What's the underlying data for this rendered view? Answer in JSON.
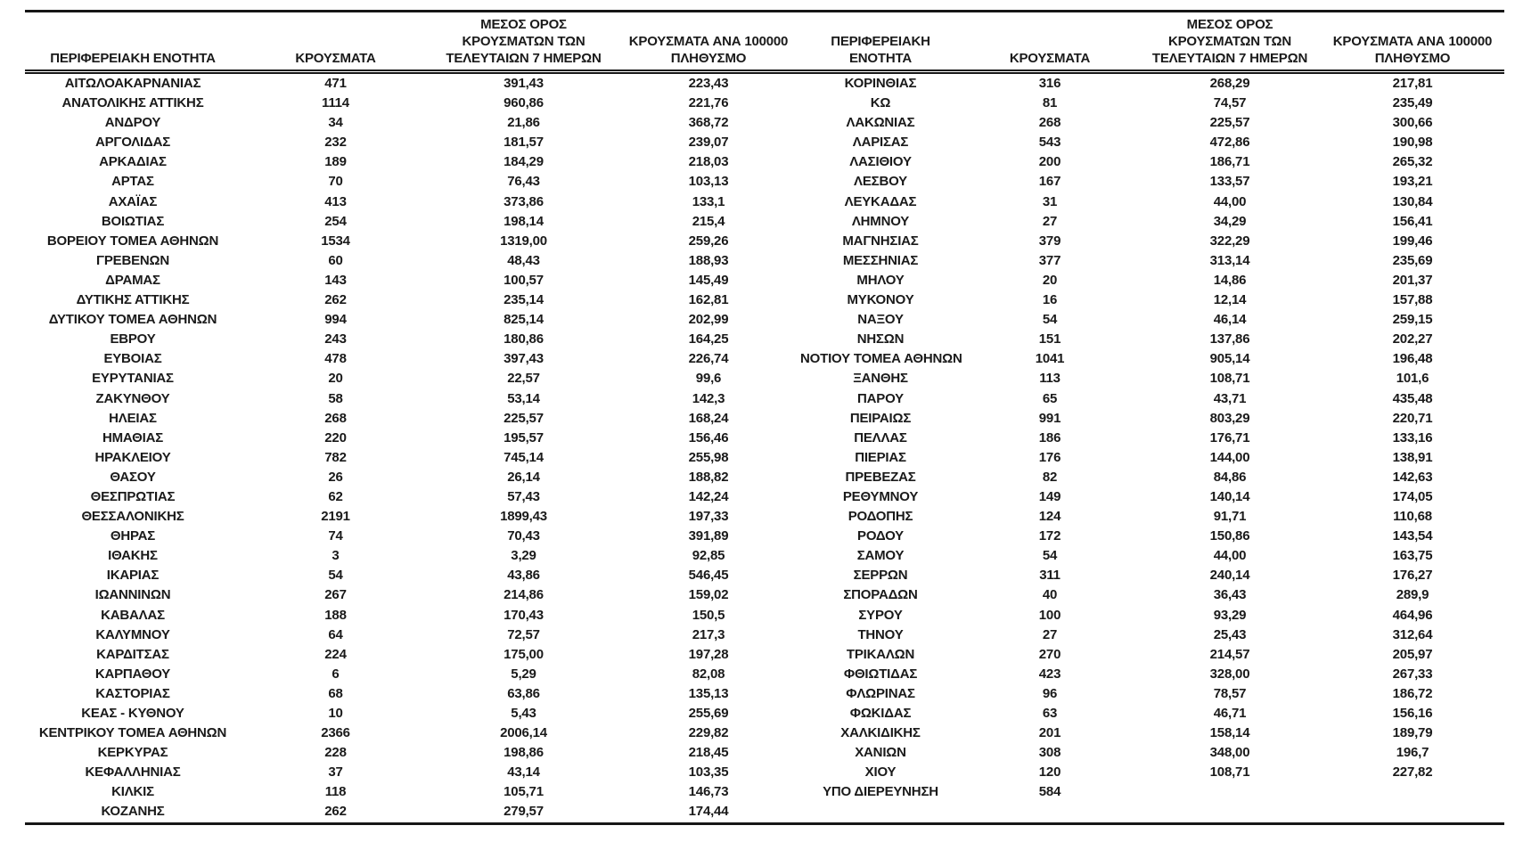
{
  "colors": {
    "background": "#ffffff",
    "text": "#1a1a1a",
    "rule": "#161616"
  },
  "table": {
    "headers": {
      "region": "ΠΕΡΙΦΕΡΕΙΑΚΗ ΕΝΟΤΗΤΑ",
      "cases": "ΚΡΟΥΣΜΑΤΑ",
      "avg7": "ΜΕΣΟΣ ΟΡΟΣ\nΚΡΟΥΣΜΑΤΩΝ ΤΩΝ\nΤΕΛΕΥΤΑΙΩΝ 7 ΗΜΕΡΩΝ",
      "per100k": "ΚΡΟΥΣΜΑΤΑ ΑΝΑ 100000\nΠΛΗΘΥΣΜΟ"
    },
    "left_rows": [
      {
        "region": "ΑΙΤΩΛΟΑΚΑΡΝΑΝΙΑΣ",
        "cases": "471",
        "avg7": "391,43",
        "per100k": "223,43"
      },
      {
        "region": "ΑΝΑΤΟΛΙΚΗΣ ΑΤΤΙΚΗΣ",
        "cases": "1114",
        "avg7": "960,86",
        "per100k": "221,76"
      },
      {
        "region": "ΑΝΔΡΟΥ",
        "cases": "34",
        "avg7": "21,86",
        "per100k": "368,72"
      },
      {
        "region": "ΑΡΓΟΛΙΔΑΣ",
        "cases": "232",
        "avg7": "181,57",
        "per100k": "239,07"
      },
      {
        "region": "ΑΡΚΑΔΙΑΣ",
        "cases": "189",
        "avg7": "184,29",
        "per100k": "218,03"
      },
      {
        "region": "ΑΡΤΑΣ",
        "cases": "70",
        "avg7": "76,43",
        "per100k": "103,13"
      },
      {
        "region": "ΑΧΑΪΑΣ",
        "cases": "413",
        "avg7": "373,86",
        "per100k": "133,1"
      },
      {
        "region": "ΒΟΙΩΤΙΑΣ",
        "cases": "254",
        "avg7": "198,14",
        "per100k": "215,4"
      },
      {
        "region": "ΒΟΡΕΙΟΥ ΤΟΜΕΑ ΑΘΗΝΩΝ",
        "cases": "1534",
        "avg7": "1319,00",
        "per100k": "259,26"
      },
      {
        "region": "ΓΡΕΒΕΝΩΝ",
        "cases": "60",
        "avg7": "48,43",
        "per100k": "188,93"
      },
      {
        "region": "ΔΡΑΜΑΣ",
        "cases": "143",
        "avg7": "100,57",
        "per100k": "145,49"
      },
      {
        "region": "ΔΥΤΙΚΗΣ ΑΤΤΙΚΗΣ",
        "cases": "262",
        "avg7": "235,14",
        "per100k": "162,81"
      },
      {
        "region": "ΔΥΤΙΚΟΥ ΤΟΜΕΑ ΑΘΗΝΩΝ",
        "cases": "994",
        "avg7": "825,14",
        "per100k": "202,99"
      },
      {
        "region": "ΕΒΡΟΥ",
        "cases": "243",
        "avg7": "180,86",
        "per100k": "164,25"
      },
      {
        "region": "ΕΥΒΟΙΑΣ",
        "cases": "478",
        "avg7": "397,43",
        "per100k": "226,74"
      },
      {
        "region": "ΕΥΡΥΤΑΝΙΑΣ",
        "cases": "20",
        "avg7": "22,57",
        "per100k": "99,6"
      },
      {
        "region": "ΖΑΚΥΝΘΟΥ",
        "cases": "58",
        "avg7": "53,14",
        "per100k": "142,3"
      },
      {
        "region": "ΗΛΕΙΑΣ",
        "cases": "268",
        "avg7": "225,57",
        "per100k": "168,24"
      },
      {
        "region": "ΗΜΑΘΙΑΣ",
        "cases": "220",
        "avg7": "195,57",
        "per100k": "156,46"
      },
      {
        "region": "ΗΡΑΚΛΕΙΟΥ",
        "cases": "782",
        "avg7": "745,14",
        "per100k": "255,98"
      },
      {
        "region": "ΘΑΣΟΥ",
        "cases": "26",
        "avg7": "26,14",
        "per100k": "188,82"
      },
      {
        "region": "ΘΕΣΠΡΩΤΙΑΣ",
        "cases": "62",
        "avg7": "57,43",
        "per100k": "142,24"
      },
      {
        "region": "ΘΕΣΣΑΛΟΝΙΚΗΣ",
        "cases": "2191",
        "avg7": "1899,43",
        "per100k": "197,33"
      },
      {
        "region": "ΘΗΡΑΣ",
        "cases": "74",
        "avg7": "70,43",
        "per100k": "391,89"
      },
      {
        "region": "ΙΘΑΚΗΣ",
        "cases": "3",
        "avg7": "3,29",
        "per100k": "92,85"
      },
      {
        "region": "ΙΚΑΡΙΑΣ",
        "cases": "54",
        "avg7": "43,86",
        "per100k": "546,45"
      },
      {
        "region": "ΙΩΑΝΝΙΝΩΝ",
        "cases": "267",
        "avg7": "214,86",
        "per100k": "159,02"
      },
      {
        "region": "ΚΑΒΑΛΑΣ",
        "cases": "188",
        "avg7": "170,43",
        "per100k": "150,5"
      },
      {
        "region": "ΚΑΛΥΜΝΟΥ",
        "cases": "64",
        "avg7": "72,57",
        "per100k": "217,3"
      },
      {
        "region": "ΚΑΡΔΙΤΣΑΣ",
        "cases": "224",
        "avg7": "175,00",
        "per100k": "197,28"
      },
      {
        "region": "ΚΑΡΠΑΘΟΥ",
        "cases": "6",
        "avg7": "5,29",
        "per100k": "82,08"
      },
      {
        "region": "ΚΑΣΤΟΡΙΑΣ",
        "cases": "68",
        "avg7": "63,86",
        "per100k": "135,13"
      },
      {
        "region": "ΚΕΑΣ - ΚΥΘΝΟΥ",
        "cases": "10",
        "avg7": "5,43",
        "per100k": "255,69"
      },
      {
        "region": "ΚΕΝΤΡΙΚΟΥ ΤΟΜΕΑ ΑΘΗΝΩΝ",
        "cases": "2366",
        "avg7": "2006,14",
        "per100k": "229,82"
      },
      {
        "region": "ΚΕΡΚΥΡΑΣ",
        "cases": "228",
        "avg7": "198,86",
        "per100k": "218,45"
      },
      {
        "region": "ΚΕΦΑΛΛΗΝΙΑΣ",
        "cases": "37",
        "avg7": "43,14",
        "per100k": "103,35"
      },
      {
        "region": "ΚΙΛΚΙΣ",
        "cases": "118",
        "avg7": "105,71",
        "per100k": "146,73"
      },
      {
        "region": "ΚΟΖΑΝΗΣ",
        "cases": "262",
        "avg7": "279,57",
        "per100k": "174,44"
      }
    ],
    "right_rows": [
      {
        "region": "ΚΟΡΙΝΘΙΑΣ",
        "cases": "316",
        "avg7": "268,29",
        "per100k": "217,81"
      },
      {
        "region": "ΚΩ",
        "cases": "81",
        "avg7": "74,57",
        "per100k": "235,49"
      },
      {
        "region": "ΛΑΚΩΝΙΑΣ",
        "cases": "268",
        "avg7": "225,57",
        "per100k": "300,66"
      },
      {
        "region": "ΛΑΡΙΣΑΣ",
        "cases": "543",
        "avg7": "472,86",
        "per100k": "190,98"
      },
      {
        "region": "ΛΑΣΙΘΙΟΥ",
        "cases": "200",
        "avg7": "186,71",
        "per100k": "265,32"
      },
      {
        "region": "ΛΕΣΒΟΥ",
        "cases": "167",
        "avg7": "133,57",
        "per100k": "193,21"
      },
      {
        "region": "ΛΕΥΚΑΔΑΣ",
        "cases": "31",
        "avg7": "44,00",
        "per100k": "130,84"
      },
      {
        "region": "ΛΗΜΝΟΥ",
        "cases": "27",
        "avg7": "34,29",
        "per100k": "156,41"
      },
      {
        "region": "ΜΑΓΝΗΣΙΑΣ",
        "cases": "379",
        "avg7": "322,29",
        "per100k": "199,46"
      },
      {
        "region": "ΜΕΣΣΗΝΙΑΣ",
        "cases": "377",
        "avg7": "313,14",
        "per100k": "235,69"
      },
      {
        "region": "ΜΗΛΟΥ",
        "cases": "20",
        "avg7": "14,86",
        "per100k": "201,37"
      },
      {
        "region": "ΜΥΚΟΝΟΥ",
        "cases": "16",
        "avg7": "12,14",
        "per100k": "157,88"
      },
      {
        "region": "ΝΑΞΟΥ",
        "cases": "54",
        "avg7": "46,14",
        "per100k": "259,15"
      },
      {
        "region": "ΝΗΣΩΝ",
        "cases": "151",
        "avg7": "137,86",
        "per100k": "202,27"
      },
      {
        "region": "ΝΟΤΙΟΥ ΤΟΜΕΑ ΑΘΗΝΩΝ",
        "cases": "1041",
        "avg7": "905,14",
        "per100k": "196,48"
      },
      {
        "region": "ΞΑΝΘΗΣ",
        "cases": "113",
        "avg7": "108,71",
        "per100k": "101,6"
      },
      {
        "region": "ΠΑΡΟΥ",
        "cases": "65",
        "avg7": "43,71",
        "per100k": "435,48"
      },
      {
        "region": "ΠΕΙΡΑΙΩΣ",
        "cases": "991",
        "avg7": "803,29",
        "per100k": "220,71"
      },
      {
        "region": "ΠΕΛΛΑΣ",
        "cases": "186",
        "avg7": "176,71",
        "per100k": "133,16"
      },
      {
        "region": "ΠΙΕΡΙΑΣ",
        "cases": "176",
        "avg7": "144,00",
        "per100k": "138,91"
      },
      {
        "region": "ΠΡΕΒΕΖΑΣ",
        "cases": "82",
        "avg7": "84,86",
        "per100k": "142,63"
      },
      {
        "region": "ΡΕΘΥΜΝΟΥ",
        "cases": "149",
        "avg7": "140,14",
        "per100k": "174,05"
      },
      {
        "region": "ΡΟΔΟΠΗΣ",
        "cases": "124",
        "avg7": "91,71",
        "per100k": "110,68"
      },
      {
        "region": "ΡΟΔΟΥ",
        "cases": "172",
        "avg7": "150,86",
        "per100k": "143,54"
      },
      {
        "region": "ΣΑΜΟΥ",
        "cases": "54",
        "avg7": "44,00",
        "per100k": "163,75"
      },
      {
        "region": "ΣΕΡΡΩΝ",
        "cases": "311",
        "avg7": "240,14",
        "per100k": "176,27"
      },
      {
        "region": "ΣΠΟΡΑΔΩΝ",
        "cases": "40",
        "avg7": "36,43",
        "per100k": "289,9"
      },
      {
        "region": "ΣΥΡΟΥ",
        "cases": "100",
        "avg7": "93,29",
        "per100k": "464,96"
      },
      {
        "region": "ΤΗΝΟΥ",
        "cases": "27",
        "avg7": "25,43",
        "per100k": "312,64"
      },
      {
        "region": "ΤΡΙΚΑΛΩΝ",
        "cases": "270",
        "avg7": "214,57",
        "per100k": "205,97"
      },
      {
        "region": "ΦΘΙΩΤΙΔΑΣ",
        "cases": "423",
        "avg7": "328,00",
        "per100k": "267,33"
      },
      {
        "region": "ΦΛΩΡΙΝΑΣ",
        "cases": "96",
        "avg7": "78,57",
        "per100k": "186,72"
      },
      {
        "region": "ΦΩΚΙΔΑΣ",
        "cases": "63",
        "avg7": "46,71",
        "per100k": "156,16"
      },
      {
        "region": "ΧΑΛΚΙΔΙΚΗΣ",
        "cases": "201",
        "avg7": "158,14",
        "per100k": "189,79"
      },
      {
        "region": "ΧΑΝΙΩΝ",
        "cases": "308",
        "avg7": "348,00",
        "per100k": "196,7"
      },
      {
        "region": "ΧΙΟΥ",
        "cases": "120",
        "avg7": "108,71",
        "per100k": "227,82"
      },
      {
        "region": "ΥΠΟ ΔΙΕΡΕΥΝΗΣΗ",
        "cases": "584",
        "avg7": "",
        "per100k": ""
      }
    ]
  }
}
